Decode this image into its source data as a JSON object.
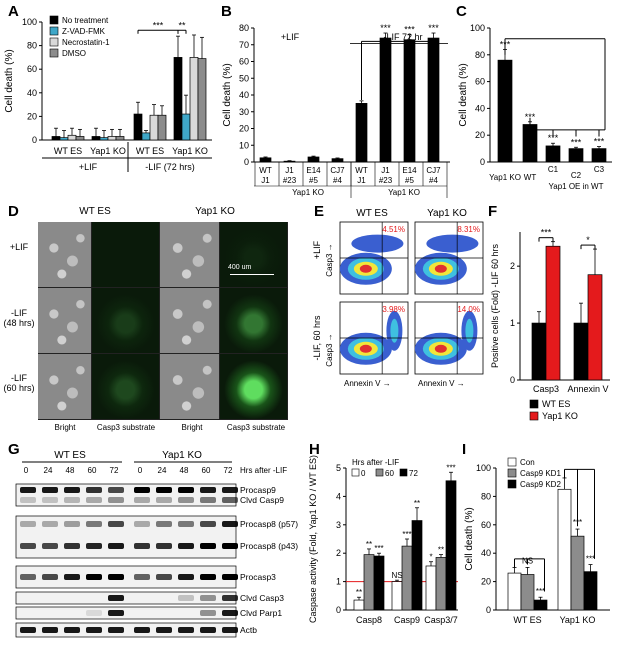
{
  "panels": {
    "A": {
      "label": "A"
    },
    "B": {
      "label": "B"
    },
    "C": {
      "label": "C"
    },
    "D": {
      "label": "D"
    },
    "E": {
      "label": "E"
    },
    "F": {
      "label": "F"
    },
    "G": {
      "label": "G"
    },
    "H": {
      "label": "H"
    },
    "I": {
      "label": "I"
    }
  },
  "chart_data": [
    {
      "id": "A",
      "type": "bar",
      "ylabel": "Cell death (%)",
      "ylim": [
        0,
        100
      ],
      "yticks": [
        0,
        20,
        40,
        60,
        80,
        100
      ],
      "groups": [
        "WT ES",
        "Yap1 KO",
        "WT ES",
        "Yap1 KO"
      ],
      "conditions": [
        "+LIF",
        "-LIF (72 hrs)"
      ],
      "series": [
        {
          "name": "No treatment",
          "color": "#000000",
          "values": [
            3,
            3,
            22,
            70
          ],
          "err": [
            7,
            7,
            10,
            18
          ]
        },
        {
          "name": "Z-VAD-FMK",
          "color": "#3fa7c8",
          "values": [
            2,
            2,
            6,
            22
          ],
          "err": [
            6,
            6,
            2,
            16
          ]
        },
        {
          "name": "Necrostatin-1",
          "color": "#d9d9d9",
          "values": [
            4,
            3,
            21,
            70
          ],
          "err": [
            6,
            6,
            9,
            19
          ]
        },
        {
          "name": "DMSO",
          "color": "#8c8c8c",
          "values": [
            3,
            3,
            21,
            69
          ],
          "err": [
            6,
            6,
            8,
            18
          ]
        }
      ],
      "sig": [
        "***",
        "**"
      ]
    },
    {
      "id": "B",
      "type": "bar",
      "ylabel": "Cell death (%)",
      "ylim": [
        0,
        80
      ],
      "yticks": [
        0,
        10,
        20,
        30,
        40,
        50,
        60,
        70,
        80
      ],
      "condition_top": [
        "+LIF",
        "-LIF 72 hr"
      ],
      "categories": [
        [
          "WT",
          "J1"
        ],
        [
          "J1",
          "#23"
        ],
        [
          "E14",
          "#5"
        ],
        [
          "CJ7",
          "#4"
        ],
        [
          "WT",
          "J1"
        ],
        [
          "J1",
          "#23"
        ],
        [
          "E14",
          "#5"
        ],
        [
          "CJ7",
          "#4"
        ]
      ],
      "values": [
        2.5,
        0.5,
        3,
        2,
        35,
        74,
        73,
        74
      ],
      "err": [
        0.5,
        0.3,
        0.5,
        0.4,
        1.5,
        3,
        3,
        3
      ],
      "sig": [
        "",
        "",
        "",
        "",
        "",
        "***",
        "***",
        "***"
      ],
      "group_labels": [
        "Yap1 KO",
        "Yap1 KO"
      ]
    },
    {
      "id": "C",
      "type": "bar",
      "ylabel": "Cell death (%)",
      "ylim": [
        0,
        100
      ],
      "yticks": [
        0,
        20,
        40,
        60,
        80,
        100
      ],
      "categories": [
        "Yap1 KO",
        "WT",
        "C1",
        "C2",
        "C3"
      ],
      "values": [
        76,
        28,
        12,
        10,
        10
      ],
      "err": [
        8,
        2,
        2,
        1,
        1.5
      ],
      "sig": [
        "***",
        "***",
        "***",
        "***",
        "***"
      ],
      "group_label": "Yap1 OE in WT"
    },
    {
      "id": "F",
      "type": "bar",
      "ylabel": "Positive cells (Fold) -LIF 60 hrs",
      "ylim": [
        0,
        2.6
      ],
      "yticks": [
        0,
        1,
        2
      ],
      "categories": [
        "Casp3",
        "Annexin V"
      ],
      "series": [
        {
          "name": "WT ES",
          "color": "#000000",
          "values": [
            1,
            1
          ],
          "err": [
            0.2,
            0.35
          ]
        },
        {
          "name": "Yap1 KO",
          "color": "#e41a1c",
          "values": [
            2.35,
            1.85
          ],
          "err": [
            0.08,
            0.45
          ]
        }
      ],
      "sig": [
        "***",
        "*"
      ]
    },
    {
      "id": "H",
      "type": "bar",
      "ylabel": "Caspase activity (Fold, Yap1 KO / WT ES)",
      "ylim": [
        0,
        5
      ],
      "yticks": [
        0,
        1,
        2,
        3,
        4,
        5
      ],
      "legend_title": "Hrs after -LIF",
      "categories": [
        "Casp8",
        "Casp9",
        "Casp3/7"
      ],
      "series": [
        {
          "name": "0",
          "color": "#ffffff",
          "values": [
            0.35,
            1,
            1.55
          ],
          "err": [
            0.1,
            0.05,
            0.15
          ]
        },
        {
          "name": "60",
          "color": "#8c8c8c",
          "values": [
            1.95,
            2.25,
            1.85
          ],
          "err": [
            0.2,
            0.25,
            0.1
          ]
        },
        {
          "name": "72",
          "color": "#000000",
          "values": [
            1.9,
            3.15,
            4.55
          ],
          "err": [
            0.1,
            0.45,
            0.3
          ]
        }
      ],
      "sig": [
        [
          "**",
          "**",
          "***"
        ],
        [
          "NS",
          "***",
          "**"
        ],
        [
          "*",
          "**",
          "***"
        ]
      ],
      "refline": 1
    },
    {
      "id": "I",
      "type": "bar",
      "ylabel": "Cell death (%)",
      "ylim": [
        0,
        100
      ],
      "yticks": [
        0,
        20,
        40,
        60,
        80,
        100
      ],
      "categories": [
        "WT ES",
        "Yap1 KO"
      ],
      "series": [
        {
          "name": "Con",
          "color": "#ffffff",
          "values": [
            26,
            85
          ],
          "err": [
            4,
            8
          ]
        },
        {
          "name": "Casp9 KD1",
          "color": "#8c8c8c",
          "values": [
            25,
            52
          ],
          "err": [
            5,
            5
          ]
        },
        {
          "name": "Casp9 KD2",
          "color": "#000000",
          "values": [
            7,
            27
          ],
          "err": [
            2,
            5
          ]
        }
      ],
      "sig": [
        [
          "NS",
          "***"
        ],
        [
          "***",
          "***"
        ]
      ]
    }
  ],
  "panelD": {
    "cols": [
      "WT ES",
      "Yap1 KO"
    ],
    "rows": [
      "+LIF",
      "-LIF (48 hrs)",
      "-LIF (60 hrs)"
    ],
    "bottom": [
      "Bright",
      "Casp3 substrate",
      "Bright",
      "Casp3 substrate"
    ],
    "scale": "400 um"
  },
  "panelE": {
    "cols": [
      "WT ES",
      "Yap1 KO"
    ],
    "rows": [
      "+LIF",
      "-LIF, 60 hrs"
    ],
    "pcts": [
      "4.51%",
      "8.31%",
      "3.98%",
      "14.0%"
    ],
    "xlabel": "Annexin V",
    "ylabel": "Casp3"
  },
  "panelG": {
    "groups": [
      "WT ES",
      "Yap1 KO"
    ],
    "hrs_label": "Hrs after -LIF",
    "lanes": [
      "0",
      "24",
      "48",
      "60",
      "72",
      "0",
      "24",
      "48",
      "60",
      "72"
    ],
    "blots": [
      "Procasp9",
      "Clvd Casp9",
      "Procasp8 (p57)",
      "Procasp8 (p43)",
      "Procasp3",
      "Clvd Casp3",
      "Clvd Parp1",
      "Actb"
    ]
  }
}
